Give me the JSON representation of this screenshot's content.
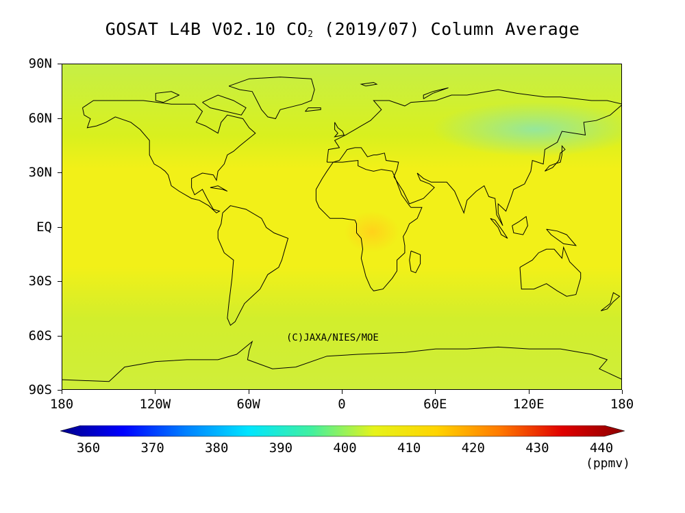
{
  "title": {
    "prefix": "GOSAT L4B V02.10 CO",
    "subscript": "2",
    "suffix": " (2019/07) Column Average"
  },
  "map": {
    "latitude_labels": [
      "90N",
      "60N",
      "30N",
      "EQ",
      "30S",
      "60S",
      "90S"
    ],
    "longitude_labels": [
      "180",
      "120W",
      "60W",
      "0",
      "60E",
      "120E",
      "180"
    ],
    "credit": "(C)JAXA/NIES/MOE",
    "field_colors": {
      "base": "#d9f01e",
      "tropics": "#f2f018",
      "high_north": "#c6ef46",
      "siberia_low": "#8ee6a8",
      "africa_high": "#ffd21a",
      "southern_ocean": "#d2ee2c",
      "antarctica": "#cfee3a"
    },
    "coastline_color": "#000000"
  },
  "colorbar": {
    "ticks": [
      "360",
      "370",
      "380",
      "390",
      "400",
      "410",
      "420",
      "430",
      "440"
    ],
    "unit": "(ppmv)",
    "colors": [
      "#00008b",
      "#0000ff",
      "#0080ff",
      "#00e5ff",
      "#40f0a0",
      "#e6f31a",
      "#ffd400",
      "#ff7a00",
      "#e00000",
      "#8b0000"
    ]
  }
}
